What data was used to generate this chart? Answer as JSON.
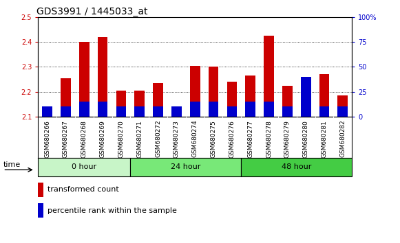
{
  "title": "GDS3991 / 1445033_at",
  "categories": [
    "GSM680266",
    "GSM680267",
    "GSM680268",
    "GSM680269",
    "GSM680270",
    "GSM680271",
    "GSM680272",
    "GSM680273",
    "GSM680274",
    "GSM680275",
    "GSM680276",
    "GSM680277",
    "GSM680278",
    "GSM680279",
    "GSM680280",
    "GSM680281",
    "GSM680282"
  ],
  "red_values": [
    2.13,
    2.255,
    2.4,
    2.42,
    2.205,
    2.205,
    2.235,
    2.135,
    2.305,
    2.3,
    2.24,
    2.265,
    2.425,
    2.225,
    2.1,
    2.27,
    2.185
  ],
  "blue_percentile": [
    10,
    10,
    15,
    15,
    10,
    10,
    10,
    10,
    15,
    15,
    10,
    15,
    15,
    10,
    40,
    10,
    10
  ],
  "groups": [
    {
      "label": "0 hour",
      "start": 0,
      "end": 5,
      "color": "#c8f5c8"
    },
    {
      "label": "24 hour",
      "start": 5,
      "end": 11,
      "color": "#78e878"
    },
    {
      "label": "48 hour",
      "start": 11,
      "end": 17,
      "color": "#44cc44"
    }
  ],
  "ylim_left": [
    2.1,
    2.5
  ],
  "ylim_right": [
    0,
    100
  ],
  "yticks_left": [
    2.1,
    2.2,
    2.3,
    2.4,
    2.5
  ],
  "yticks_right": [
    0,
    25,
    50,
    75,
    100
  ],
  "red_color": "#cc0000",
  "blue_color": "#0000cc",
  "bar_width": 0.55,
  "fig_bg_color": "#ffffff",
  "plot_bg_color": "#ffffff",
  "xtick_bg_color": "#d8d8d8",
  "legend_items": [
    "transformed count",
    "percentile rank within the sample"
  ],
  "title_fontsize": 10,
  "tick_fontsize": 7,
  "label_fontsize": 8
}
